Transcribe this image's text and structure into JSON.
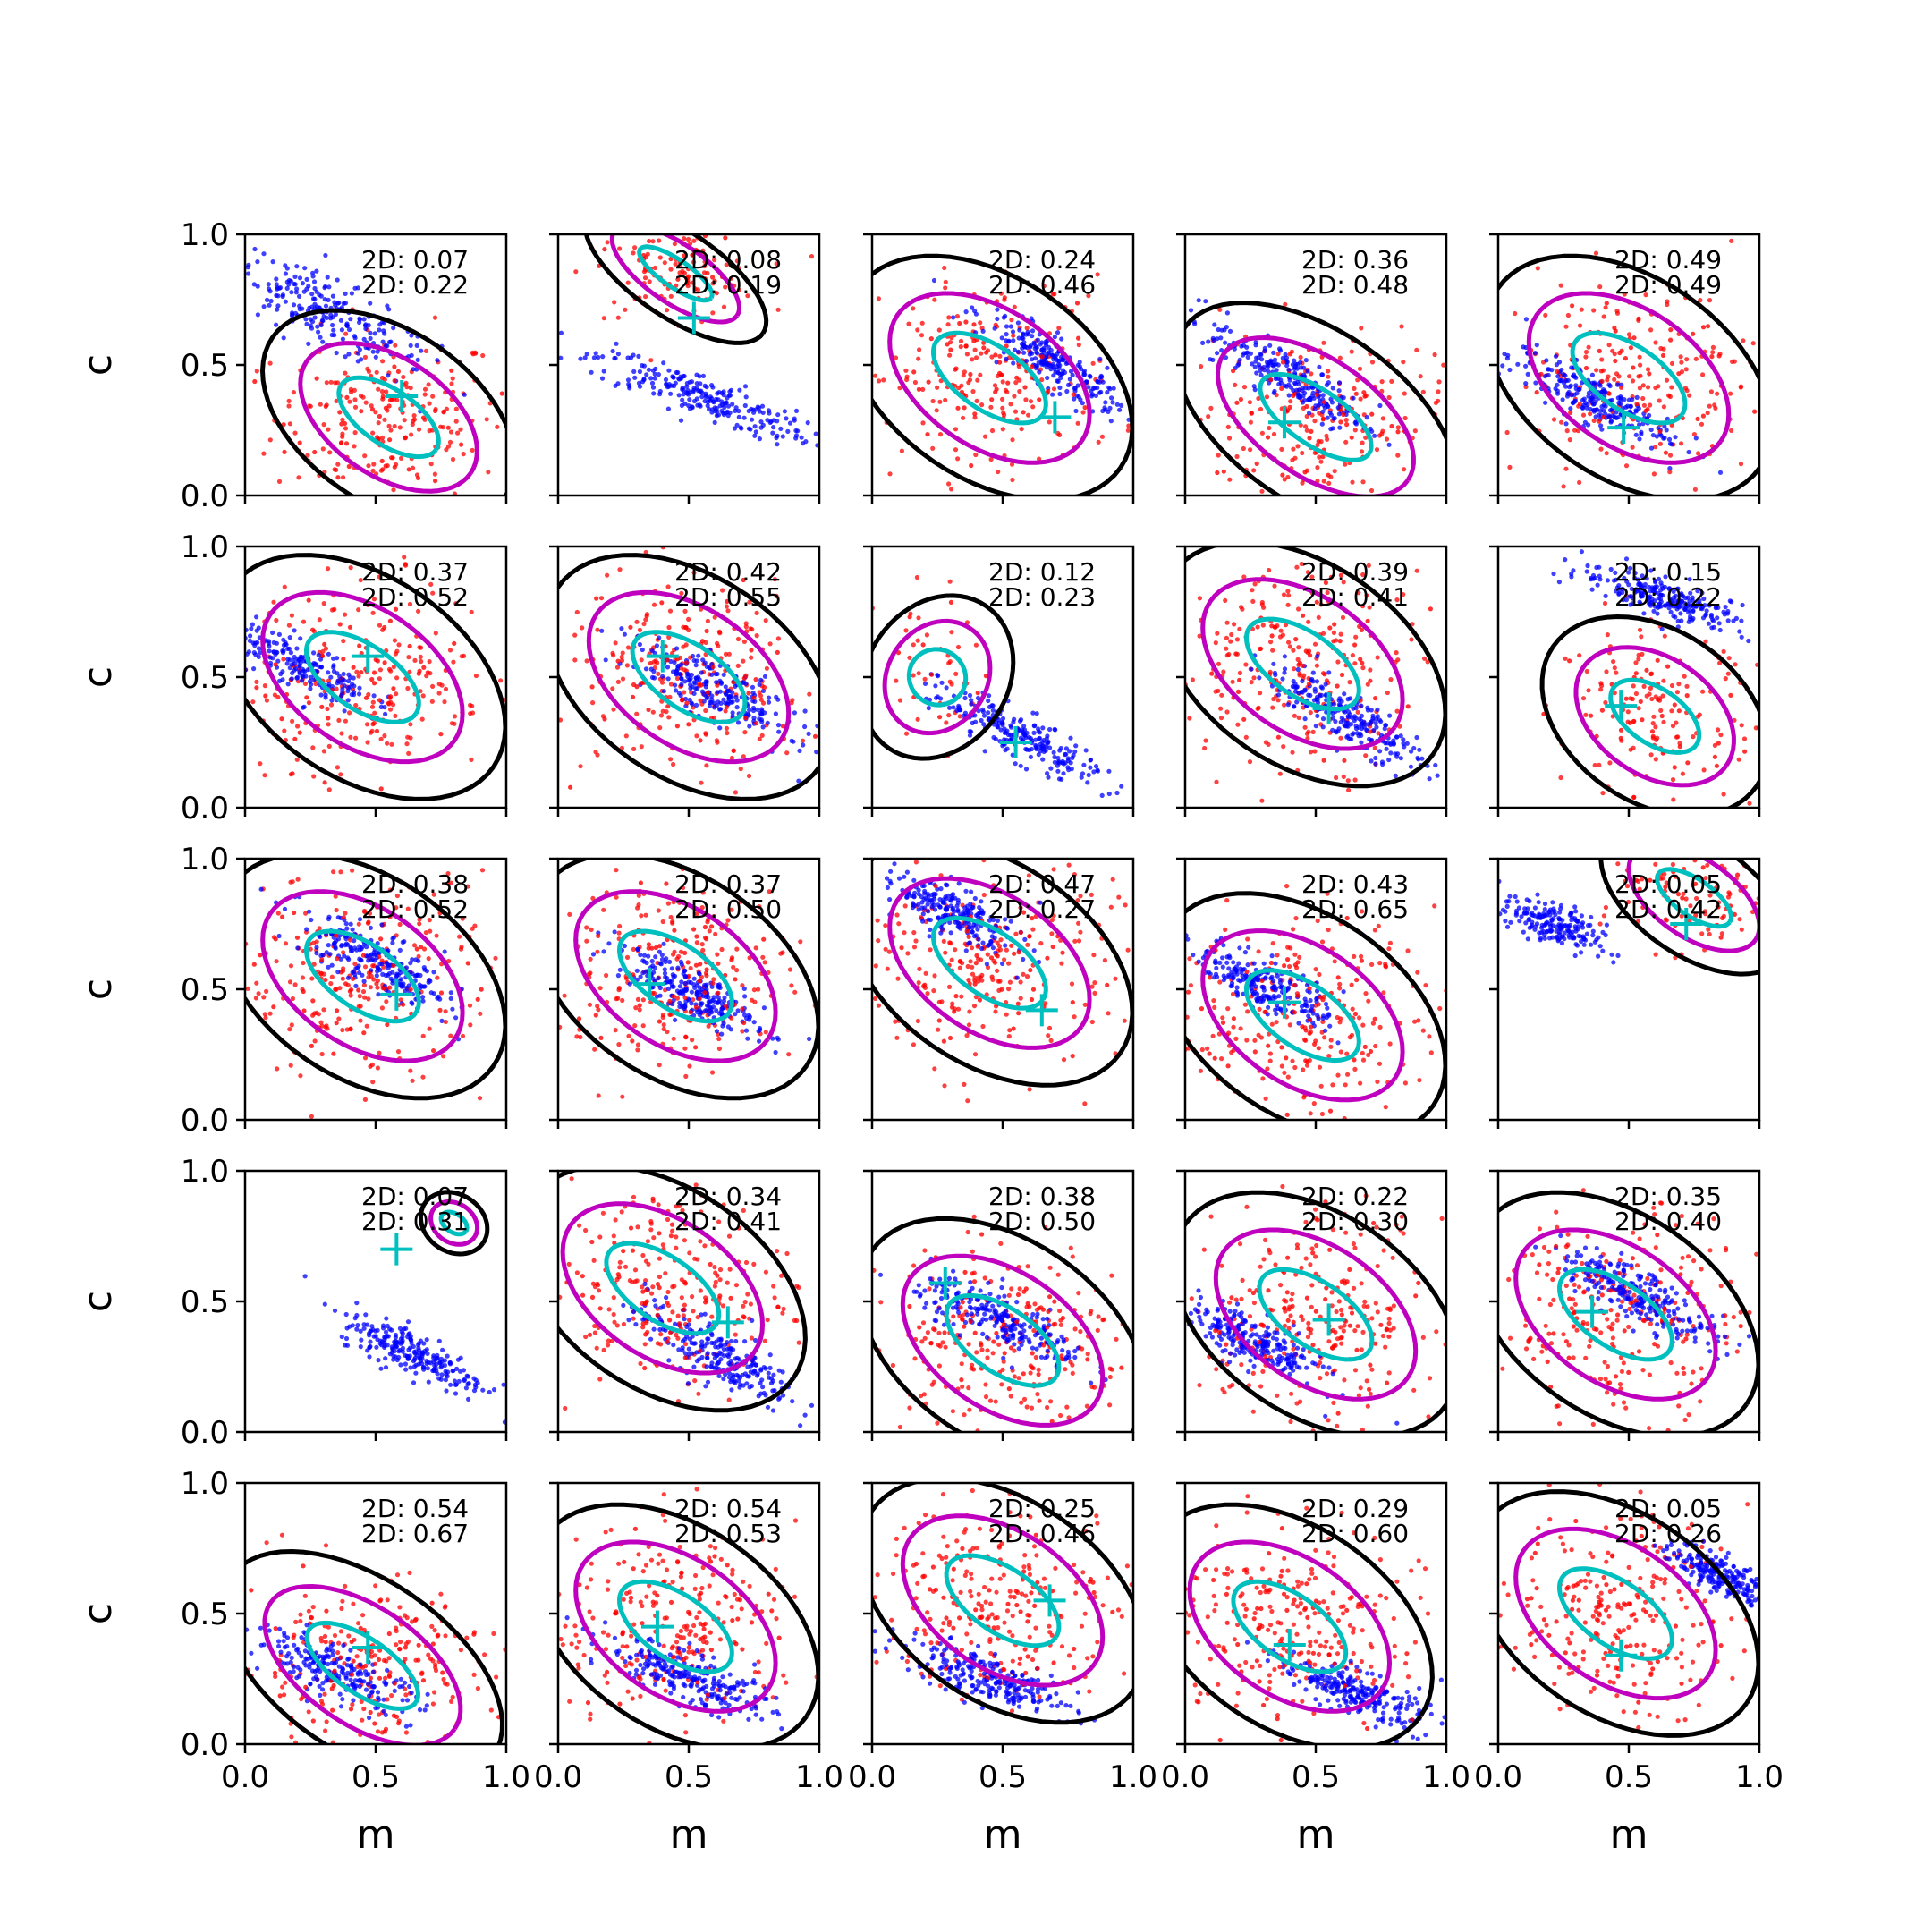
{
  "chart_data": {
    "type": "scatter",
    "layout": {
      "rows": 5,
      "cols": 5
    },
    "xlabel": "m",
    "ylabel": "c",
    "xlim": [
      0,
      1
    ],
    "ylim": [
      0,
      1
    ],
    "xticks": [
      "0.0",
      "0.5",
      "1.0"
    ],
    "yticks": [
      "0.0",
      "0.5",
      "1.0"
    ],
    "series": [
      {
        "color": "#0000ff",
        "kind": "scatter"
      },
      {
        "color": "#ff0000",
        "kind": "scatter"
      },
      {
        "color": "#000000",
        "kind": "contour"
      },
      {
        "color": "#bf00bf",
        "kind": "contour"
      },
      {
        "color": "#00bfbf",
        "kind": "contour"
      },
      {
        "color": "#00bfbf",
        "kind": "marker",
        "symbol": "+"
      }
    ],
    "panels": [
      {
        "annot": [
          "2D: 0.07",
          "2D: 0.22"
        ],
        "cross": [
          0.6,
          0.38
        ],
        "blue": {
          "center": [
            0.3,
            0.7
          ],
          "angle": -0.5,
          "spread": [
            0.45,
            0.12
          ],
          "n": 240
        },
        "red": {
          "center": [
            0.55,
            0.3
          ],
          "spread": [
            0.4,
            0.3
          ],
          "n": 200
        }
      },
      {
        "annot": [
          "2D: 0.08",
          "2D: 0.19"
        ],
        "cross": [
          0.52,
          0.68
        ],
        "blue": {
          "center": [
            0.55,
            0.38
          ],
          "angle": -0.35,
          "spread": [
            0.45,
            0.08
          ],
          "n": 240
        },
        "red": {
          "center": [
            0.45,
            0.85
          ],
          "spread": [
            0.3,
            0.15
          ],
          "n": 100
        }
      },
      {
        "annot": [
          "2D: 0.24",
          "2D: 0.46"
        ],
        "cross": [
          0.7,
          0.3
        ],
        "blue": {
          "center": [
            0.7,
            0.5
          ],
          "angle": -0.6,
          "spread": [
            0.3,
            0.08
          ],
          "n": 240
        },
        "red": {
          "center": [
            0.45,
            0.45
          ],
          "spread": [
            0.45,
            0.35
          ],
          "n": 200
        }
      },
      {
        "annot": [
          "2D: 0.36",
          "2D: 0.48"
        ],
        "cross": [
          0.38,
          0.28
        ],
        "blue": {
          "center": [
            0.4,
            0.45
          ],
          "angle": -0.55,
          "spread": [
            0.35,
            0.09
          ],
          "n": 240
        },
        "red": {
          "center": [
            0.5,
            0.3
          ],
          "spread": [
            0.45,
            0.3
          ],
          "n": 200
        }
      },
      {
        "annot": [
          "2D: 0.49",
          "2D: 0.49"
        ],
        "cross": [
          0.48,
          0.26
        ],
        "blue": {
          "center": [
            0.35,
            0.38
          ],
          "angle": -0.45,
          "spread": [
            0.35,
            0.09
          ],
          "n": 240
        },
        "red": {
          "center": [
            0.5,
            0.45
          ],
          "spread": [
            0.45,
            0.35
          ],
          "n": 200
        }
      },
      {
        "annot": [
          "2D: 0.37",
          "2D: 0.52"
        ],
        "cross": [
          0.47,
          0.58
        ],
        "blue": {
          "center": [
            0.2,
            0.55
          ],
          "angle": -0.45,
          "spread": [
            0.3,
            0.09
          ],
          "n": 200
        },
        "red": {
          "center": [
            0.45,
            0.5
          ],
          "spread": [
            0.45,
            0.35
          ],
          "n": 220
        }
      },
      {
        "annot": [
          "2D: 0.42",
          "2D: 0.55"
        ],
        "cross": [
          0.4,
          0.58
        ],
        "blue": {
          "center": [
            0.6,
            0.45
          ],
          "angle": -0.5,
          "spread": [
            0.35,
            0.1
          ],
          "n": 240
        },
        "red": {
          "center": [
            0.5,
            0.5
          ],
          "spread": [
            0.45,
            0.35
          ],
          "n": 220
        }
      },
      {
        "annot": [
          "2D: 0.12",
          "2D: 0.23"
        ],
        "cross": [
          0.55,
          0.25
        ],
        "blue": {
          "center": [
            0.55,
            0.28
          ],
          "angle": -0.5,
          "spread": [
            0.35,
            0.08
          ],
          "n": 240
        },
        "red": {
          "center": [
            0.25,
            0.5
          ],
          "spread": [
            0.2,
            0.3
          ],
          "n": 40
        }
      },
      {
        "annot": [
          "2D: 0.39",
          "2D: 0.41"
        ],
        "cross": [
          0.55,
          0.38
        ],
        "blue": {
          "center": [
            0.62,
            0.35
          ],
          "angle": -0.55,
          "spread": [
            0.35,
            0.09
          ],
          "n": 240
        },
        "red": {
          "center": [
            0.45,
            0.55
          ],
          "spread": [
            0.45,
            0.35
          ],
          "n": 220
        }
      },
      {
        "annot": [
          "2D: 0.15",
          "2D: 0.22"
        ],
        "cross": [
          0.47,
          0.39
        ],
        "blue": {
          "center": [
            0.65,
            0.8
          ],
          "angle": -0.3,
          "spread": [
            0.35,
            0.07
          ],
          "n": 240
        },
        "red": {
          "center": [
            0.6,
            0.35
          ],
          "spread": [
            0.35,
            0.3
          ],
          "n": 140
        }
      },
      {
        "annot": [
          "2D: 0.38",
          "2D: 0.52"
        ],
        "cross": [
          0.58,
          0.48
        ],
        "blue": {
          "center": [
            0.5,
            0.6
          ],
          "angle": -0.5,
          "spread": [
            0.35,
            0.1
          ],
          "n": 240
        },
        "red": {
          "center": [
            0.45,
            0.55
          ],
          "spread": [
            0.45,
            0.35
          ],
          "n": 220
        }
      },
      {
        "annot": [
          "2D: 0.37",
          "2D: 0.50"
        ],
        "cross": [
          0.35,
          0.52
        ],
        "blue": {
          "center": [
            0.5,
            0.5
          ],
          "angle": -0.5,
          "spread": [
            0.3,
            0.09
          ],
          "n": 240
        },
        "red": {
          "center": [
            0.45,
            0.55
          ],
          "spread": [
            0.45,
            0.35
          ],
          "n": 220
        }
      },
      {
        "annot": [
          "2D: 0.47",
          "2D: 0.27"
        ],
        "cross": [
          0.65,
          0.42
        ],
        "blue": {
          "center": [
            0.3,
            0.8
          ],
          "angle": -0.5,
          "spread": [
            0.3,
            0.09
          ],
          "n": 240
        },
        "red": {
          "center": [
            0.45,
            0.6
          ],
          "spread": [
            0.45,
            0.35
          ],
          "n": 220
        }
      },
      {
        "annot": [
          "2D: 0.43",
          "2D: 0.65"
        ],
        "cross": [
          0.38,
          0.45
        ],
        "blue": {
          "center": [
            0.3,
            0.52
          ],
          "angle": -0.45,
          "spread": [
            0.3,
            0.09
          ],
          "n": 240
        },
        "red": {
          "center": [
            0.45,
            0.4
          ],
          "spread": [
            0.45,
            0.35
          ],
          "n": 220
        }
      },
      {
        "annot": [
          "2D: 0.05",
          "2D: 0.42"
        ],
        "cross": [
          0.72,
          0.75
        ],
        "blue": {
          "center": [
            0.2,
            0.75
          ],
          "angle": -0.4,
          "spread": [
            0.2,
            0.08
          ],
          "n": 200
        },
        "red": {
          "center": [
            0.75,
            0.85
          ],
          "spread": [
            0.3,
            0.2
          ],
          "n": 80
        }
      },
      {
        "annot": [
          "2D: 0.07",
          "2D: 0.31"
        ],
        "cross": [
          0.58,
          0.7
        ],
        "blue": {
          "center": [
            0.65,
            0.3
          ],
          "angle": -0.45,
          "spread": [
            0.3,
            0.08
          ],
          "n": 240
        },
        "red": {
          "center": [
            0.8,
            0.8
          ],
          "spread": [
            0.1,
            0.1
          ],
          "n": 0
        }
      },
      {
        "annot": [
          "2D: 0.34",
          "2D: 0.41"
        ],
        "cross": [
          0.65,
          0.42
        ],
        "blue": {
          "center": [
            0.6,
            0.3
          ],
          "angle": -0.5,
          "spread": [
            0.35,
            0.1
          ],
          "n": 240
        },
        "red": {
          "center": [
            0.4,
            0.55
          ],
          "spread": [
            0.45,
            0.35
          ],
          "n": 220
        }
      },
      {
        "annot": [
          "2D: 0.38",
          "2D: 0.50"
        ],
        "cross": [
          0.28,
          0.57
        ],
        "blue": {
          "center": [
            0.5,
            0.42
          ],
          "angle": -0.45,
          "spread": [
            0.35,
            0.09
          ],
          "n": 240
        },
        "red": {
          "center": [
            0.5,
            0.35
          ],
          "spread": [
            0.45,
            0.35
          ],
          "n": 220
        }
      },
      {
        "annot": [
          "2D: 0.22",
          "2D: 0.30"
        ],
        "cross": [
          0.55,
          0.43
        ],
        "blue": {
          "center": [
            0.25,
            0.35
          ],
          "angle": -0.45,
          "spread": [
            0.3,
            0.09
          ],
          "n": 240
        },
        "red": {
          "center": [
            0.5,
            0.45
          ],
          "spread": [
            0.45,
            0.35
          ],
          "n": 220
        }
      },
      {
        "annot": [
          "2D: 0.35",
          "2D: 0.40"
        ],
        "cross": [
          0.36,
          0.46
        ],
        "blue": {
          "center": [
            0.55,
            0.52
          ],
          "angle": -0.5,
          "spread": [
            0.35,
            0.09
          ],
          "n": 240
        },
        "red": {
          "center": [
            0.45,
            0.45
          ],
          "spread": [
            0.45,
            0.35
          ],
          "n": 220
        }
      },
      {
        "annot": [
          "2D: 0.54",
          "2D: 0.67"
        ],
        "cross": [
          0.47,
          0.37
        ],
        "blue": {
          "center": [
            0.35,
            0.28
          ],
          "angle": -0.4,
          "spread": [
            0.35,
            0.09
          ],
          "n": 220
        },
        "red": {
          "center": [
            0.45,
            0.3
          ],
          "spread": [
            0.45,
            0.3
          ],
          "n": 200
        }
      },
      {
        "annot": [
          "2D: 0.54",
          "2D: 0.53"
        ],
        "cross": [
          0.38,
          0.45
        ],
        "blue": {
          "center": [
            0.5,
            0.25
          ],
          "angle": -0.4,
          "spread": [
            0.35,
            0.09
          ],
          "n": 240
        },
        "red": {
          "center": [
            0.45,
            0.45
          ],
          "spread": [
            0.45,
            0.35
          ],
          "n": 220
        }
      },
      {
        "annot": [
          "2D: 0.25",
          "2D: 0.46"
        ],
        "cross": [
          0.68,
          0.55
        ],
        "blue": {
          "center": [
            0.45,
            0.25
          ],
          "angle": -0.35,
          "spread": [
            0.35,
            0.08
          ],
          "n": 240
        },
        "red": {
          "center": [
            0.5,
            0.55
          ],
          "spread": [
            0.45,
            0.35
          ],
          "n": 220
        }
      },
      {
        "annot": [
          "2D: 0.29",
          "2D: 0.60"
        ],
        "cross": [
          0.4,
          0.38
        ],
        "blue": {
          "center": [
            0.65,
            0.2
          ],
          "angle": -0.4,
          "spread": [
            0.3,
            0.08
          ],
          "n": 240
        },
        "red": {
          "center": [
            0.4,
            0.45
          ],
          "spread": [
            0.45,
            0.35
          ],
          "n": 220
        }
      },
      {
        "annot": [
          "2D: 0.05",
          "2D: 0.26"
        ],
        "cross": [
          0.47,
          0.34
        ],
        "blue": {
          "center": [
            0.85,
            0.65
          ],
          "angle": -0.5,
          "spread": [
            0.2,
            0.07
          ],
          "n": 200
        },
        "red": {
          "center": [
            0.45,
            0.5
          ],
          "spread": [
            0.45,
            0.35
          ],
          "n": 220
        }
      }
    ]
  }
}
